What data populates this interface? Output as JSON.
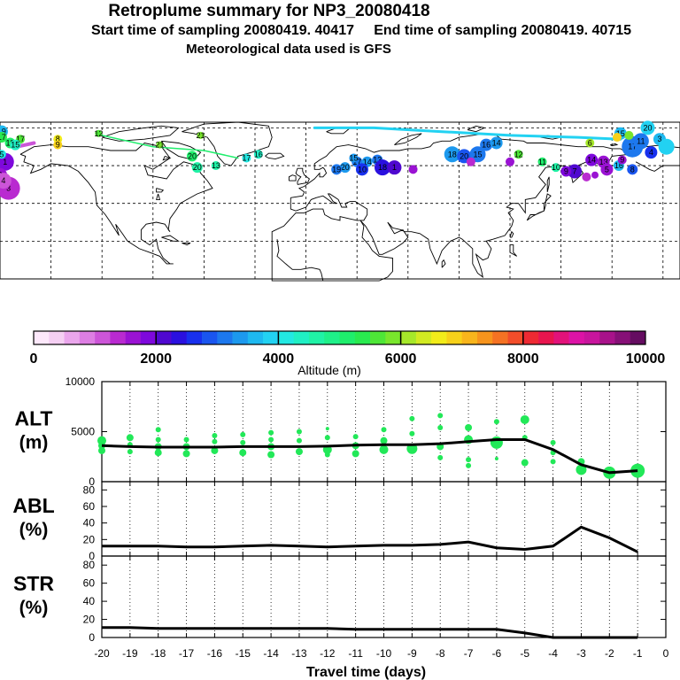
{
  "header": {
    "title": "Retroplume summary for NP3_20080418",
    "sampling": "Start time of sampling 20080419. 40417     End time of sampling 20080419. 40715",
    "met": "Meteorological data used is GFS"
  },
  "colorbar": {
    "ticks": [
      "0",
      "2000",
      "4000",
      "6000",
      "8000",
      "10000"
    ],
    "label": "Altitude (m)",
    "colors": [
      "#fde8fb",
      "#f5cff3",
      "#eaa6ec",
      "#dd7ee3",
      "#cc55d8",
      "#b92ad0",
      "#9a12d3",
      "#7e08dc",
      "#4f08d0",
      "#2a10df",
      "#1830ee",
      "#1a55ef",
      "#1d78ee",
      "#1c99ee",
      "#1eb9f0",
      "#22d2f2",
      "#22e8e2",
      "#20efc4",
      "#20f2a6",
      "#1ff089",
      "#1fee6c",
      "#29ea4f",
      "#4ee637",
      "#79e62c",
      "#a6e82a",
      "#d2ea22",
      "#f2ec1a",
      "#f7d11a",
      "#f8b51c",
      "#f7941d",
      "#f57223",
      "#f24d2a",
      "#ee2a33",
      "#e8154e",
      "#e2127a",
      "#dc13a6",
      "#c8159d",
      "#a8128a",
      "#861077",
      "#650d61"
    ]
  },
  "map": {
    "markers": [
      {
        "label": "19",
        "lon": -179,
        "lat": 78,
        "alt": 3600,
        "size": 7
      },
      {
        "label": "17",
        "lon": -179,
        "lat": 75,
        "alt": 5400,
        "size": 6
      },
      {
        "label": "17",
        "lon": -168,
        "lat": 74,
        "alt": 5600,
        "size": 5
      },
      {
        "label": "18",
        "lon": -174,
        "lat": 72,
        "alt": 5000,
        "size": 6
      },
      {
        "label": "15",
        "lon": -171,
        "lat": 71,
        "alt": 4300,
        "size": 6
      },
      {
        "label": "8",
        "lon": -146,
        "lat": 74,
        "alt": 6500,
        "size": 5
      },
      {
        "label": "9",
        "lon": -146,
        "lat": 71,
        "alt": 6800,
        "size": 5
      },
      {
        "label": "12",
        "lon": -122,
        "lat": 77,
        "alt": 5500,
        "size": 4
      },
      {
        "label": "1",
        "lon": -177,
        "lat": 62,
        "alt": 1800,
        "size": 10
      },
      {
        "label": "2",
        "lon": -180,
        "lat": 55,
        "alt": 1500,
        "size": 8
      },
      {
        "label": "3",
        "lon": -175,
        "lat": 48,
        "alt": 1400,
        "size": 13
      },
      {
        "label": "4",
        "lon": -178,
        "lat": 52,
        "alt": 1200,
        "size": 9
      },
      {
        "label": "5",
        "lon": -179,
        "lat": 66,
        "alt": 4000,
        "size": 5
      },
      {
        "label": "21",
        "lon": -86,
        "lat": 71,
        "alt": 5800,
        "size": 4
      },
      {
        "label": "20",
        "lon": -67,
        "lat": 65,
        "alt": 5000,
        "size": 6
      },
      {
        "label": "20",
        "lon": -64,
        "lat": 59,
        "alt": 4500,
        "size": 6
      },
      {
        "label": "13",
        "lon": -53,
        "lat": 60,
        "alt": 4500,
        "size": 5
      },
      {
        "label": "17",
        "lon": -35,
        "lat": 64,
        "alt": 4200,
        "size": 5
      },
      {
        "label": "16",
        "lon": -28,
        "lat": 66,
        "alt": 4300,
        "size": 5
      },
      {
        "label": "21",
        "lon": -62,
        "lat": 76,
        "alt": 5900,
        "size": 4
      },
      {
        "label": "17",
        "lon": 30,
        "lat": 62,
        "alt": 3100,
        "size": 6
      },
      {
        "label": "14",
        "lon": 36,
        "lat": 62,
        "alt": 3300,
        "size": 6
      },
      {
        "label": "13",
        "lon": 42,
        "lat": 63,
        "alt": 3200,
        "size": 6
      },
      {
        "label": "15",
        "lon": 28,
        "lat": 64,
        "alt": 3400,
        "size": 5
      },
      {
        "label": "20",
        "lon": 23,
        "lat": 59,
        "alt": 3300,
        "size": 6
      },
      {
        "label": "19",
        "lon": 18,
        "lat": 58,
        "alt": 3000,
        "size": 6
      },
      {
        "label": "10",
        "lon": 33,
        "lat": 58,
        "alt": 2600,
        "size": 7
      },
      {
        "label": "18",
        "lon": 45,
        "lat": 59,
        "alt": 2400,
        "size": 9
      },
      {
        "label": "1",
        "lon": 52,
        "lat": 59,
        "alt": 2200,
        "size": 8
      },
      {
        "label": "18",
        "lon": 86,
        "lat": 66,
        "alt": 3400,
        "size": 9
      },
      {
        "label": "20",
        "lon": 93,
        "lat": 65,
        "alt": 2800,
        "size": 8
      },
      {
        "label": "15",
        "lon": 101,
        "lat": 66,
        "alt": 3200,
        "size": 9
      },
      {
        "label": "16",
        "lon": 106,
        "lat": 71,
        "alt": 3100,
        "size": 7
      },
      {
        "label": "14",
        "lon": 112,
        "lat": 72,
        "alt": 3300,
        "size": 7
      },
      {
        "label": "12",
        "lon": 125,
        "lat": 66,
        "alt": 5500,
        "size": 5
      },
      {
        "label": "11",
        "lon": 139,
        "lat": 62,
        "alt": 5000,
        "size": 5
      },
      {
        "label": "10",
        "lon": 147,
        "lat": 59,
        "alt": 4600,
        "size": 5
      },
      {
        "label": "7",
        "lon": 158,
        "lat": 57,
        "alt": 2200,
        "size": 8
      },
      {
        "label": "9",
        "lon": 153,
        "lat": 57,
        "alt": 1800,
        "size": 6
      },
      {
        "label": "6",
        "lon": 167,
        "lat": 72,
        "alt": 6200,
        "size": 5
      },
      {
        "label": "14",
        "lon": 168,
        "lat": 63,
        "alt": 1900,
        "size": 7
      },
      {
        "label": "13",
        "lon": 175,
        "lat": 62,
        "alt": 1700,
        "size": 7
      },
      {
        "label": "5",
        "lon": 177,
        "lat": 58,
        "alt": 1600,
        "size": 7
      },
      {
        "label": "16",
        "lon": 184,
        "lat": 60,
        "alt": 3600,
        "size": 6
      },
      {
        "label": "8",
        "lon": 192,
        "lat": 58,
        "alt": 2800,
        "size": 6
      },
      {
        "label": "17",
        "lon": 192,
        "lat": 70,
        "alt": 3000,
        "size": 12
      },
      {
        "label": "15",
        "lon": 185,
        "lat": 77,
        "alt": 3600,
        "size": 7
      },
      {
        "label": "20",
        "lon": 201,
        "lat": 80,
        "alt": 3900,
        "size": 8
      },
      {
        "label": "11",
        "lon": 197,
        "lat": 73,
        "alt": 3200,
        "size": 9
      },
      {
        "label": "4",
        "lon": 203,
        "lat": 67,
        "alt": 2500,
        "size": 7
      },
      {
        "label": "3",
        "lon": 208,
        "lat": 74,
        "alt": 3500,
        "size": 7
      },
      {
        "label": "9",
        "lon": 186,
        "lat": 63,
        "alt": 1700,
        "size": 5
      },
      {
        "label": "",
        "lon": 97,
        "lat": 62,
        "alt": 1300,
        "size": 5
      },
      {
        "label": "",
        "lon": 63,
        "lat": 58,
        "alt": 1600,
        "size": 5
      },
      {
        "label": "",
        "lon": 120,
        "lat": 62,
        "alt": 1500,
        "size": 5
      },
      {
        "label": "",
        "lon": 170,
        "lat": 55,
        "alt": 1500,
        "size": 4
      },
      {
        "label": "",
        "lon": 165,
        "lat": 54,
        "alt": 1400,
        "size": 5
      },
      {
        "label": "",
        "lon": 183,
        "lat": 75,
        "alt": 6800,
        "size": 5
      },
      {
        "label": "",
        "lon": 190,
        "lat": 76,
        "alt": 5800,
        "size": 5
      },
      {
        "label": "",
        "lon": 212,
        "lat": 70,
        "alt": 3800,
        "size": 9
      }
    ]
  },
  "chart_data": [
    {
      "type": "scatter",
      "name": "ALT",
      "ylabel": "ALT\n(m)",
      "ylim": [
        0,
        10000
      ],
      "yticks": [
        "0",
        "5000",
        "10000"
      ],
      "xlim": [
        -20,
        0
      ],
      "line": {
        "x": [
          -20,
          -19,
          -18,
          -17,
          -16,
          -15,
          -14,
          -13,
          -12,
          -11,
          -10,
          -9,
          -8,
          -7,
          -6,
          -5,
          -4,
          -3,
          -2,
          -1
        ],
        "y": [
          3600,
          3500,
          3450,
          3450,
          3450,
          3500,
          3500,
          3500,
          3550,
          3650,
          3700,
          3700,
          3800,
          4000,
          4200,
          4200,
          3200,
          1700,
          900,
          1100
        ]
      },
      "points": [
        {
          "x": -20,
          "y": 4100,
          "s": 5
        },
        {
          "x": -20,
          "y": 3600,
          "s": 4
        },
        {
          "x": -20,
          "y": 3100,
          "s": 4
        },
        {
          "x": -19,
          "y": 4400,
          "s": 4
        },
        {
          "x": -19,
          "y": 3700,
          "s": 3
        },
        {
          "x": -19,
          "y": 3000,
          "s": 3
        },
        {
          "x": -18,
          "y": 5200,
          "s": 3
        },
        {
          "x": -18,
          "y": 4200,
          "s": 3
        },
        {
          "x": -18,
          "y": 3500,
          "s": 4
        },
        {
          "x": -18,
          "y": 2900,
          "s": 4
        },
        {
          "x": -17,
          "y": 4200,
          "s": 3
        },
        {
          "x": -17,
          "y": 3500,
          "s": 4
        },
        {
          "x": -17,
          "y": 2800,
          "s": 4
        },
        {
          "x": -16,
          "y": 4600,
          "s": 3
        },
        {
          "x": -16,
          "y": 4000,
          "s": 3
        },
        {
          "x": -16,
          "y": 3100,
          "s": 4
        },
        {
          "x": -15,
          "y": 4700,
          "s": 3
        },
        {
          "x": -15,
          "y": 3900,
          "s": 3
        },
        {
          "x": -15,
          "y": 2900,
          "s": 4
        },
        {
          "x": -14,
          "y": 4900,
          "s": 3
        },
        {
          "x": -14,
          "y": 4200,
          "s": 3
        },
        {
          "x": -14,
          "y": 3500,
          "s": 4
        },
        {
          "x": -14,
          "y": 2700,
          "s": 4
        },
        {
          "x": -13,
          "y": 5000,
          "s": 3
        },
        {
          "x": -13,
          "y": 4100,
          "s": 3
        },
        {
          "x": -13,
          "y": 3000,
          "s": 4
        },
        {
          "x": -12,
          "y": 5300,
          "s": 2
        },
        {
          "x": -12,
          "y": 4400,
          "s": 3
        },
        {
          "x": -12,
          "y": 3200,
          "s": 5
        },
        {
          "x": -12,
          "y": 2700,
          "s": 3
        },
        {
          "x": -11,
          "y": 4500,
          "s": 3
        },
        {
          "x": -11,
          "y": 3600,
          "s": 4
        },
        {
          "x": -11,
          "y": 2800,
          "s": 4
        },
        {
          "x": -10,
          "y": 5200,
          "s": 3
        },
        {
          "x": -10,
          "y": 4100,
          "s": 4
        },
        {
          "x": -10,
          "y": 3200,
          "s": 5
        },
        {
          "x": -9,
          "y": 6300,
          "s": 3
        },
        {
          "x": -9,
          "y": 4800,
          "s": 3
        },
        {
          "x": -9,
          "y": 3300,
          "s": 6
        },
        {
          "x": -8,
          "y": 6600,
          "s": 3
        },
        {
          "x": -8,
          "y": 5400,
          "s": 3
        },
        {
          "x": -8,
          "y": 3500,
          "s": 4
        },
        {
          "x": -8,
          "y": 2400,
          "s": 3
        },
        {
          "x": -7,
          "y": 5400,
          "s": 4
        },
        {
          "x": -7,
          "y": 4200,
          "s": 5
        },
        {
          "x": -7,
          "y": 2200,
          "s": 3
        },
        {
          "x": -7,
          "y": 1600,
          "s": 3
        },
        {
          "x": -6,
          "y": 6000,
          "s": 3
        },
        {
          "x": -6,
          "y": 3900,
          "s": 7
        },
        {
          "x": -6,
          "y": 2300,
          "s": 2
        },
        {
          "x": -5,
          "y": 6200,
          "s": 5
        },
        {
          "x": -5,
          "y": 4400,
          "s": 3
        },
        {
          "x": -5,
          "y": 1900,
          "s": 4
        },
        {
          "x": -4,
          "y": 3900,
          "s": 3
        },
        {
          "x": -4,
          "y": 2900,
          "s": 3
        },
        {
          "x": -4,
          "y": 2000,
          "s": 3
        },
        {
          "x": -3,
          "y": 2000,
          "s": 4
        },
        {
          "x": -3,
          "y": 1200,
          "s": 6
        },
        {
          "x": -2,
          "y": 900,
          "s": 7
        },
        {
          "x": -1,
          "y": 1100,
          "s": 8
        }
      ]
    },
    {
      "type": "line",
      "name": "ABL",
      "ylabel": "ABL\n(%)",
      "ylim": [
        0,
        90
      ],
      "yticks": [
        "0",
        "20",
        "40",
        "60",
        "80"
      ],
      "x": [
        -20,
        -19,
        -18,
        -17,
        -16,
        -15,
        -14,
        -13,
        -12,
        -11,
        -10,
        -9,
        -8,
        -7,
        -6,
        -5,
        -4,
        -3,
        -2,
        -1
      ],
      "y": [
        12,
        12,
        12,
        11,
        11,
        12,
        13,
        12,
        11,
        12,
        13,
        13,
        14,
        17,
        10,
        8,
        12,
        35,
        22,
        5
      ]
    },
    {
      "type": "line",
      "name": "STR",
      "ylabel": "STR\n(%)",
      "ylim": [
        0,
        90
      ],
      "yticks": [
        "0",
        "20",
        "40",
        "60",
        "80"
      ],
      "x": [
        -20,
        -19,
        -18,
        -17,
        -16,
        -15,
        -14,
        -13,
        -12,
        -11,
        -10,
        -9,
        -8,
        -7,
        -6,
        -5,
        -4,
        -3,
        -2,
        -1
      ],
      "y": [
        11,
        11,
        10,
        10,
        10,
        10,
        10,
        10,
        10,
        9,
        9,
        9,
        9,
        9,
        9,
        5,
        0,
        0,
        0,
        0
      ],
      "xticks": [
        "-20",
        "-19",
        "-18",
        "-17",
        "-16",
        "-15",
        "-14",
        "-13",
        "-12",
        "-11",
        "-10",
        "-9",
        "-8",
        "-7",
        "-6",
        "-5",
        "-4",
        "-3",
        "-2",
        "-1",
        "0"
      ],
      "xlabel": "Travel time (days)"
    }
  ]
}
